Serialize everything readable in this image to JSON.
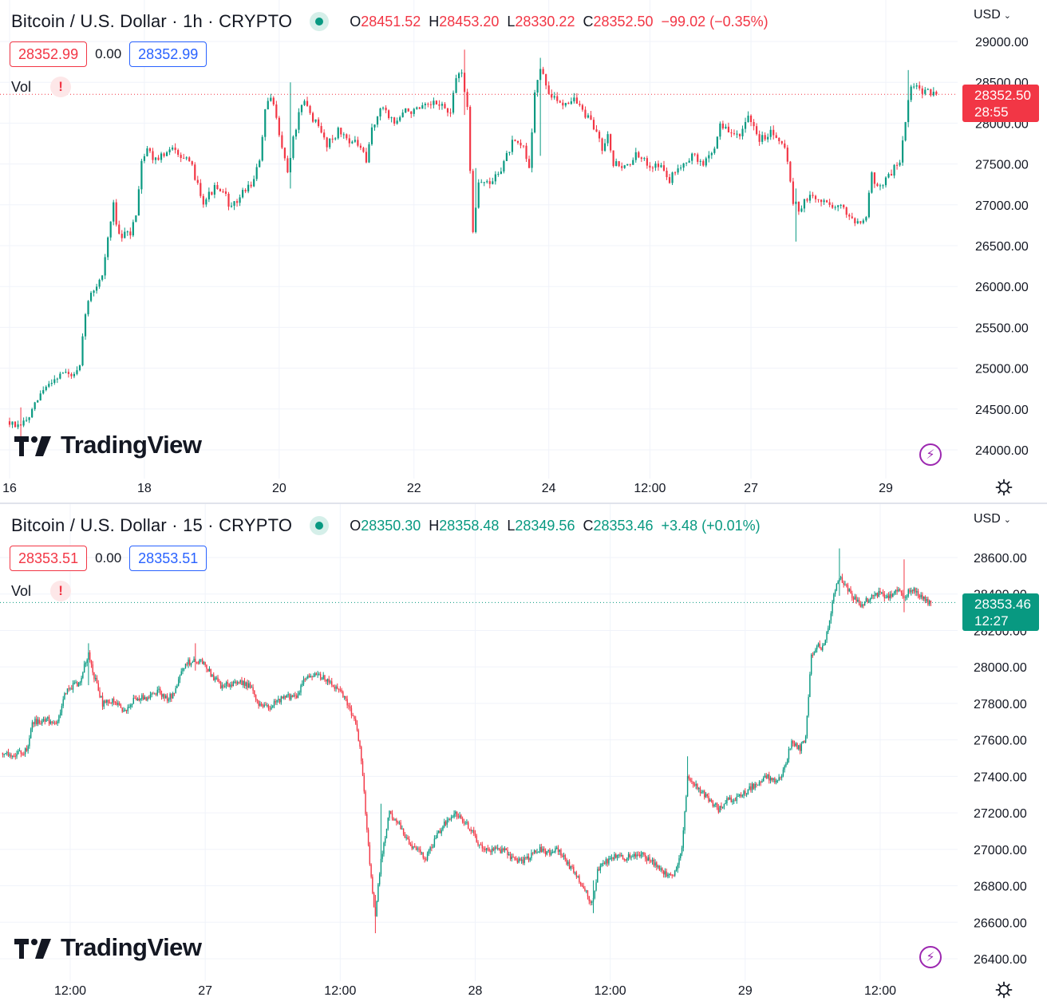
{
  "colors": {
    "up": "#089981",
    "down": "#f23645",
    "grid": "#f0f3fa",
    "text": "#131722",
    "bolt": "#9c27b0"
  },
  "brand": "TradingView",
  "icons": {
    "status": "market-open-dot-icon",
    "warning": "exclamation-icon",
    "bolt": "lightning-icon",
    "gear": "settings-gear-icon",
    "currency": "chevron-down-icon"
  },
  "panels": [
    {
      "title": "Bitcoin / U.S. Dollar · 1h · CRYPTO",
      "ohlc": {
        "o_label": "O",
        "o": "28451.52",
        "h_label": "H",
        "h": "28453.20",
        "l_label": "L",
        "l": "28330.22",
        "c_label": "C",
        "c": "28352.50",
        "change": "−99.02 (−0.35%)",
        "direction": "down"
      },
      "bid": "28352.99",
      "spread": "0.00",
      "ask": "28352.99",
      "vol_label": "Vol",
      "warning": "!",
      "currency": "USD",
      "last_price": "28352.50",
      "countdown": "28:55"
    },
    {
      "title": "Bitcoin / U.S. Dollar · 15 · CRYPTO",
      "ohlc": {
        "o_label": "O",
        "o": "28350.30",
        "h_label": "H",
        "h": "28358.48",
        "l_label": "L",
        "l": "28349.56",
        "c_label": "C",
        "c": "28353.46",
        "change": "+3.48 (+0.01%)",
        "direction": "up"
      },
      "bid": "28353.51",
      "spread": "0.00",
      "ask": "28353.51",
      "vol_label": "Vol",
      "warning": "!",
      "currency": "USD",
      "last_price": "28353.46",
      "countdown": "12:27"
    }
  ],
  "chart_data": [
    {
      "type": "candlestick",
      "interval": "1h",
      "y_ticks": [
        24000,
        24500,
        25000,
        25500,
        26000,
        26500,
        27000,
        27500,
        28000,
        28500,
        29000
      ],
      "ylim": [
        23650,
        29250
      ],
      "x_ticks": [
        {
          "label": "16",
          "t": 0
        },
        {
          "label": "18",
          "t": 48
        },
        {
          "label": "20",
          "t": 96
        },
        {
          "label": "22",
          "t": 144
        },
        {
          "label": "24",
          "t": 192
        },
        {
          "label": "12:00",
          "t": 228
        },
        {
          "label": "27",
          "t": 264
        },
        {
          "label": "29",
          "t": 312
        }
      ],
      "xlim": [
        -1,
        338
      ],
      "last_price": 28352.5,
      "path": [
        [
          0,
          24350
        ],
        [
          4,
          24270
        ],
        [
          8,
          24400
        ],
        [
          12,
          24680
        ],
        [
          16,
          24850
        ],
        [
          20,
          24950
        ],
        [
          24,
          24900
        ],
        [
          26,
          25000
        ],
        [
          28,
          25700
        ],
        [
          30,
          25900
        ],
        [
          34,
          26150
        ],
        [
          38,
          27000
        ],
        [
          40,
          26600
        ],
        [
          44,
          26650
        ],
        [
          46,
          26900
        ],
        [
          48,
          27550
        ],
        [
          50,
          27700
        ],
        [
          52,
          27580
        ],
        [
          56,
          27600
        ],
        [
          60,
          27700
        ],
        [
          66,
          27450
        ],
        [
          70,
          27050
        ],
        [
          74,
          27200
        ],
        [
          78,
          27100
        ],
        [
          80,
          26950
        ],
        [
          84,
          27150
        ],
        [
          88,
          27300
        ],
        [
          90,
          27550
        ],
        [
          92,
          28150
        ],
        [
          94,
          28300
        ],
        [
          96,
          28100
        ],
        [
          98,
          27700
        ],
        [
          100,
          27400
        ],
        [
          102,
          27800
        ],
        [
          104,
          28100
        ],
        [
          106,
          28250
        ],
        [
          110,
          28000
        ],
        [
          114,
          27750
        ],
        [
          118,
          27900
        ],
        [
          122,
          27800
        ],
        [
          126,
          27700
        ],
        [
          128,
          27500
        ],
        [
          130,
          27950
        ],
        [
          134,
          28200
        ],
        [
          138,
          28000
        ],
        [
          142,
          28150
        ],
        [
          146,
          28150
        ],
        [
          150,
          28200
        ],
        [
          154,
          28250
        ],
        [
          158,
          28100
        ],
        [
          160,
          28550
        ],
        [
          162,
          28650
        ],
        [
          164,
          28150
        ],
        [
          166,
          26700
        ],
        [
          168,
          27300
        ],
        [
          172,
          27250
        ],
        [
          176,
          27450
        ],
        [
          180,
          27750
        ],
        [
          184,
          27700
        ],
        [
          186,
          27450
        ],
        [
          188,
          28400
        ],
        [
          190,
          28650
        ],
        [
          194,
          28300
        ],
        [
          198,
          28250
        ],
        [
          202,
          28300
        ],
        [
          206,
          28100
        ],
        [
          210,
          27900
        ],
        [
          212,
          27700
        ],
        [
          214,
          27900
        ],
        [
          216,
          27500
        ],
        [
          218,
          27500
        ],
        [
          220,
          27450
        ],
        [
          224,
          27600
        ],
        [
          228,
          27500
        ],
        [
          232,
          27500
        ],
        [
          236,
          27300
        ],
        [
          240,
          27500
        ],
        [
          244,
          27600
        ],
        [
          248,
          27500
        ],
        [
          252,
          27700
        ],
        [
          254,
          28000
        ],
        [
          258,
          27850
        ],
        [
          262,
          27900
        ],
        [
          264,
          28050
        ],
        [
          268,
          27800
        ],
        [
          272,
          27900
        ],
        [
          276,
          27800
        ],
        [
          278,
          27550
        ],
        [
          280,
          27050
        ],
        [
          282,
          26950
        ],
        [
          286,
          27100
        ],
        [
          290,
          27050
        ],
        [
          294,
          27000
        ],
        [
          298,
          26950
        ],
        [
          302,
          26800
        ],
        [
          306,
          26850
        ],
        [
          308,
          27400
        ],
        [
          310,
          27200
        ],
        [
          314,
          27350
        ],
        [
          318,
          27550
        ],
        [
          320,
          28050
        ],
        [
          322,
          28450
        ],
        [
          326,
          28400
        ],
        [
          330,
          28350
        ]
      ],
      "spikes": [
        {
          "t": 4,
          "high": 24520,
          "low": 24100
        },
        {
          "t": 100,
          "high": 28500,
          "low": 27200
        },
        {
          "t": 162,
          "high": 28900,
          "low": 28100
        },
        {
          "t": 166,
          "high": 27450,
          "low": 26650
        },
        {
          "t": 189,
          "high": 28800,
          "low": 27600
        },
        {
          "t": 280,
          "high": 27200,
          "low": 26550
        },
        {
          "t": 320,
          "high": 28650,
          "low": 27950
        }
      ]
    },
    {
      "type": "candlestick",
      "interval": "15",
      "y_ticks": [
        26400,
        26600,
        26800,
        27000,
        27200,
        27400,
        27600,
        27800,
        28000,
        28200,
        28400,
        28600
      ],
      "ylim": [
        26310,
        28730
      ],
      "x_ticks": [
        {
          "label": "12:00",
          "t": 48
        },
        {
          "label": "27",
          "t": 144
        },
        {
          "label": "12:00",
          "t": 240
        },
        {
          "label": "28",
          "t": 336
        },
        {
          "label": "12:00",
          "t": 432
        },
        {
          "label": "29",
          "t": 528
        },
        {
          "label": "12:00",
          "t": 624
        }
      ],
      "xlim": [
        -1,
        672
      ],
      "last_price": 28353.46,
      "path": [
        [
          0,
          27530
        ],
        [
          10,
          27520
        ],
        [
          18,
          27540
        ],
        [
          22,
          27700
        ],
        [
          30,
          27710
        ],
        [
          40,
          27700
        ],
        [
          46,
          27870
        ],
        [
          56,
          27920
        ],
        [
          62,
          28080
        ],
        [
          66,
          27950
        ],
        [
          72,
          27800
        ],
        [
          80,
          27820
        ],
        [
          86,
          27750
        ],
        [
          96,
          27830
        ],
        [
          104,
          27830
        ],
        [
          112,
          27870
        ],
        [
          118,
          27820
        ],
        [
          124,
          27870
        ],
        [
          128,
          27960
        ],
        [
          132,
          28020
        ],
        [
          138,
          28040
        ],
        [
          144,
          28020
        ],
        [
          150,
          27950
        ],
        [
          156,
          27900
        ],
        [
          164,
          27910
        ],
        [
          170,
          27920
        ],
        [
          176,
          27900
        ],
        [
          184,
          27790
        ],
        [
          190,
          27780
        ],
        [
          200,
          27830
        ],
        [
          210,
          27840
        ],
        [
          216,
          27940
        ],
        [
          224,
          27960
        ],
        [
          232,
          27930
        ],
        [
          240,
          27870
        ],
        [
          246,
          27800
        ],
        [
          252,
          27700
        ],
        [
          256,
          27500
        ],
        [
          260,
          27100
        ],
        [
          264,
          26750
        ],
        [
          266,
          26640
        ],
        [
          270,
          26950
        ],
        [
          276,
          27200
        ],
        [
          282,
          27150
        ],
        [
          290,
          27030
        ],
        [
          296,
          27000
        ],
        [
          302,
          26950
        ],
        [
          310,
          27080
        ],
        [
          316,
          27150
        ],
        [
          322,
          27200
        ],
        [
          330,
          27150
        ],
        [
          336,
          27080
        ],
        [
          342,
          27000
        ],
        [
          350,
          27000
        ],
        [
          358,
          26990
        ],
        [
          366,
          26930
        ],
        [
          374,
          26950
        ],
        [
          382,
          27000
        ],
        [
          390,
          26980
        ],
        [
          396,
          27000
        ],
        [
          402,
          26930
        ],
        [
          410,
          26850
        ],
        [
          416,
          26760
        ],
        [
          420,
          26700
        ],
        [
          424,
          26880
        ],
        [
          430,
          26930
        ],
        [
          436,
          26960
        ],
        [
          444,
          26950
        ],
        [
          452,
          26980
        ],
        [
          460,
          26950
        ],
        [
          468,
          26890
        ],
        [
          474,
          26850
        ],
        [
          480,
          26880
        ],
        [
          484,
          27000
        ],
        [
          488,
          27400
        ],
        [
          494,
          27350
        ],
        [
          502,
          27280
        ],
        [
          510,
          27220
        ],
        [
          516,
          27270
        ],
        [
          524,
          27280
        ],
        [
          532,
          27330
        ],
        [
          538,
          27370
        ],
        [
          544,
          27400
        ],
        [
          550,
          27380
        ],
        [
          556,
          27420
        ],
        [
          562,
          27600
        ],
        [
          568,
          27550
        ],
        [
          572,
          27620
        ],
        [
          576,
          28050
        ],
        [
          580,
          28120
        ],
        [
          584,
          28100
        ],
        [
          588,
          28200
        ],
        [
          592,
          28400
        ],
        [
          596,
          28500
        ],
        [
          600,
          28450
        ],
        [
          606,
          28380
        ],
        [
          612,
          28340
        ],
        [
          618,
          28380
        ],
        [
          624,
          28400
        ],
        [
          630,
          28380
        ],
        [
          636,
          28420
        ],
        [
          642,
          28390
        ],
        [
          648,
          28430
        ],
        [
          654,
          28390
        ],
        [
          660,
          28353
        ]
      ],
      "spikes": [
        {
          "t": 61,
          "high": 28130,
          "low": 27900
        },
        {
          "t": 137,
          "high": 28130,
          "low": 27980
        },
        {
          "t": 265,
          "high": 26750,
          "low": 26540
        },
        {
          "t": 269,
          "high": 27250,
          "low": 26850
        },
        {
          "t": 420,
          "high": 26830,
          "low": 26650
        },
        {
          "t": 487,
          "high": 27510,
          "low": 27300
        },
        {
          "t": 595,
          "high": 28650,
          "low": 28390
        },
        {
          "t": 641,
          "high": 28590,
          "low": 28300
        }
      ]
    }
  ]
}
